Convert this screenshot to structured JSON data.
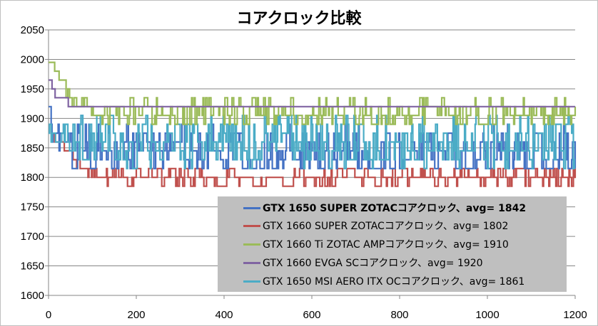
{
  "chart_data": {
    "type": "line",
    "title": "コアクロック比較",
    "xlabel": "",
    "ylabel": "",
    "xlim": [
      0,
      1200
    ],
    "ylim": [
      1600,
      2050
    ],
    "x_ticks": [
      "0",
      "200",
      "400",
      "600",
      "800",
      "1000",
      "1200"
    ],
    "y_ticks": [
      "1600",
      "1650",
      "1700",
      "1750",
      "1800",
      "1850",
      "1900",
      "1950",
      "2000",
      "2050"
    ],
    "grid": "horizontal",
    "legend_position": "bottom-right",
    "series": [
      {
        "name": "GTX 1650 SUPER ZOTACコアクロック、avg= 1842",
        "color": "#4472c4",
        "bold": true,
        "profile": [
          [
            0,
            1920
          ],
          [
            5,
            1890
          ],
          [
            20,
            1870
          ],
          [
            60,
            1860
          ],
          [
            100,
            1845
          ],
          [
            1200,
            1842
          ]
        ],
        "noise_levels": [
          1815,
          1830,
          1845,
          1860,
          1875,
          1890,
          1905
        ],
        "avg": 1842
      },
      {
        "name": "GTX 1660 SUPER ZOTACコアクロック、avg= 1802",
        "color": "#c0504d",
        "bold": false,
        "profile": [
          [
            0,
            1890
          ],
          [
            10,
            1860
          ],
          [
            40,
            1850
          ],
          [
            80,
            1815
          ],
          [
            150,
            1802
          ],
          [
            1200,
            1802
          ]
        ],
        "noise_levels": [
          1785,
          1800,
          1815
        ],
        "avg": 1802
      },
      {
        "name": "GTX 1660 Ti ZOTAC AMPコアクロック、avg= 1910",
        "color": "#9bbb59",
        "bold": false,
        "profile": [
          [
            0,
            1995
          ],
          [
            15,
            1985
          ],
          [
            40,
            1950
          ],
          [
            90,
            1925
          ],
          [
            150,
            1910
          ],
          [
            1200,
            1910
          ]
        ],
        "noise_levels": [
          1890,
          1905,
          1920,
          1935
        ],
        "avg": 1910
      },
      {
        "name": "GTX 1660 EVGA SCコアクロック、avg= 1920",
        "color": "#8064a2",
        "bold": false,
        "steps": [
          [
            0,
            1965
          ],
          [
            8,
            1950
          ],
          [
            15,
            1935
          ],
          [
            45,
            1920
          ],
          [
            1200,
            1920
          ]
        ],
        "avg": 1920
      },
      {
        "name": "GTX 1650 MSI AERO ITX OCコアクロック、avg= 1861",
        "color": "#4bacc6",
        "bold": false,
        "profile": [
          [
            0,
            1880
          ],
          [
            50,
            1870
          ],
          [
            150,
            1862
          ],
          [
            1200,
            1861
          ]
        ],
        "noise_levels": [
          1815,
          1830,
          1845,
          1860,
          1875,
          1890,
          1905
        ],
        "avg": 1861
      }
    ]
  }
}
